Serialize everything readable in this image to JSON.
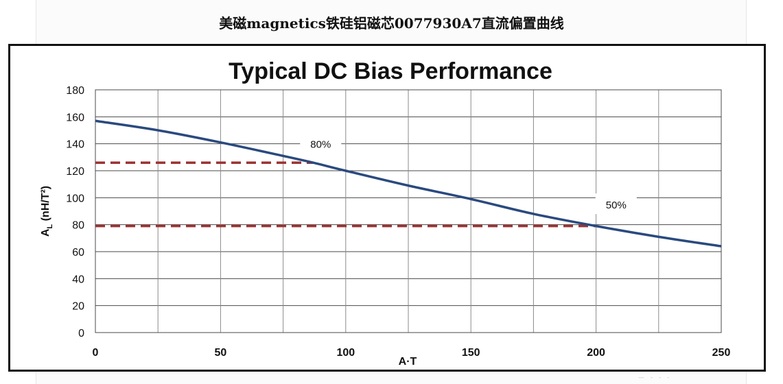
{
  "page": {
    "heading": "美磁magnetics铁硅铝磁芯0077930A7直流偏置曲线"
  },
  "chart_data": {
    "type": "line",
    "title": "Typical DC Bias Performance",
    "xlabel": "A·T",
    "ylabel": "AL (nH/T²)",
    "xlim": [
      0,
      250
    ],
    "ylim": [
      0,
      180
    ],
    "xticks": [
      0,
      50,
      100,
      150,
      200,
      250
    ],
    "yticks": [
      0,
      20,
      40,
      60,
      80,
      100,
      120,
      140,
      160,
      180
    ],
    "x_minor_grid": [
      25,
      75,
      125,
      175,
      225
    ],
    "grid": true,
    "series": [
      {
        "color": "#2a4a7f",
        "x": [
          0,
          25,
          50,
          75,
          87,
          100,
          125,
          150,
          175,
          200,
          225,
          250
        ],
        "y": [
          157,
          150,
          141,
          131,
          126,
          120,
          109,
          99,
          88,
          79,
          71,
          64
        ]
      }
    ],
    "reference_lines": [
      {
        "label": "80%",
        "y": 126,
        "x_end": 87,
        "color": "#9e3232"
      },
      {
        "label": "50%",
        "y": 79,
        "x_end": 200,
        "color": "#9e3232"
      }
    ],
    "annotations": [
      {
        "text": "80%",
        "x": 90,
        "y": 140
      },
      {
        "text": "50%",
        "x": 208,
        "y": 95
      }
    ]
  }
}
